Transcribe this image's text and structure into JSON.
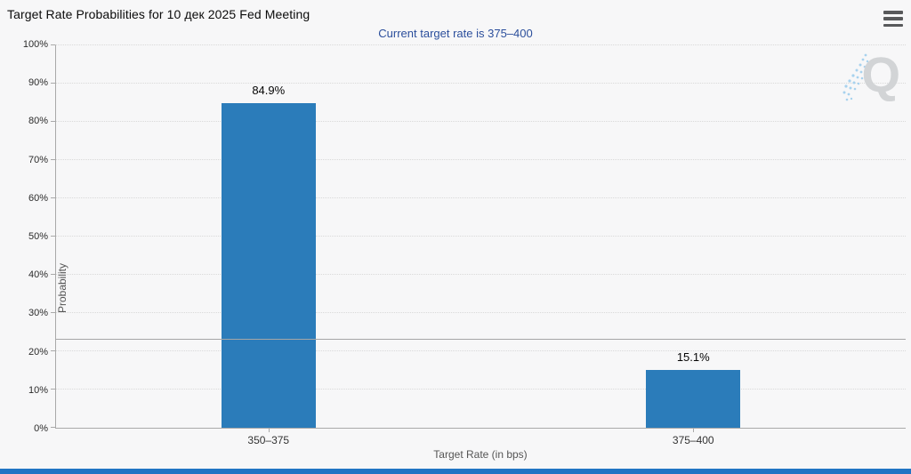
{
  "page": {
    "title": "Target Rate Probabilities for 10 дек 2025 Fed Meeting",
    "subtitle": "Current target rate is 375–400",
    "watermark_letter": "Q"
  },
  "chart_data": {
    "type": "bar",
    "title": "Target Rate Probabilities for 10 дек 2025 Fed Meeting",
    "subtitle": "Current target rate is 375–400",
    "categories": [
      "350–375",
      "375–400"
    ],
    "values": [
      84.9,
      15.1
    ],
    "value_labels": [
      "84.9%",
      "15.1%"
    ],
    "xlabel": "Target Rate (in bps)",
    "ylabel": "Probability",
    "ylim": [
      0,
      100
    ],
    "y_tick_step": 10,
    "y_ticks": [
      "0%",
      "10%",
      "20%",
      "30%",
      "40%",
      "50%",
      "60%",
      "70%",
      "80%",
      "90%",
      "100%"
    ],
    "grid": "horizontal-dotted",
    "legend_position": "none",
    "reference_line_y": 23,
    "bar_color": "#2b7cba",
    "reference_line_color": "#a6a6a6",
    "subtitle_color": "#2c4f9c",
    "accent_bar_color": "#2175c4"
  }
}
